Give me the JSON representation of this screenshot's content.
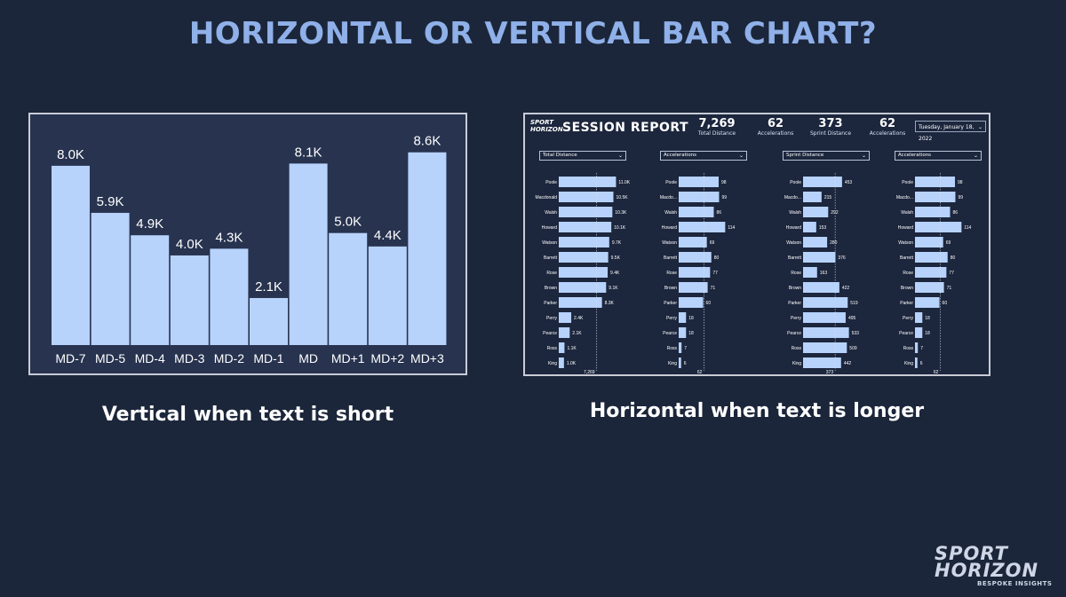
{
  "page": {
    "title": "HORIZONTAL OR VERTICAL BAR CHART?",
    "caption_left": "Vertical when text is short",
    "caption_right": "Horizontal when text is longer",
    "logo": {
      "line1": "SPORT",
      "line2": "HORIZON",
      "tagline": "BESPOKE INSIGHTS"
    }
  },
  "colors": {
    "background": "#1b263a",
    "title": "#8fb0e8",
    "bar": "#b7d2fb",
    "panel_left": "#27334f",
    "panel_right": "#1c263d"
  },
  "report": {
    "logo_line1": "SPORT",
    "logo_line2": "HORIZON",
    "title": "SESSION REPORT",
    "kpis": [
      {
        "value": "7,269",
        "label": "Total Distance"
      },
      {
        "value": "62",
        "label": "Accelerations"
      },
      {
        "value": "373",
        "label": "Sprint Distance"
      },
      {
        "value": "62",
        "label": "Accelerations"
      }
    ],
    "date": "Tuesday, January 18, 2022",
    "dropdowns": [
      "Total Distance",
      "Accelerations",
      "Sprint Distance",
      "Accelerations"
    ]
  },
  "chart_data": [
    {
      "type": "bar",
      "orientation": "vertical",
      "categories": [
        "MD-7",
        "MD-5",
        "MD-4",
        "MD-3",
        "MD-2",
        "MD-1",
        "MD",
        "MD+1",
        "MD+2",
        "MD+3"
      ],
      "values": [
        8.0,
        5.9,
        4.9,
        4.0,
        4.3,
        2.1,
        8.1,
        5.0,
        4.4,
        8.6
      ],
      "value_labels": [
        "8.0K",
        "5.9K",
        "4.9K",
        "4.0K",
        "4.3K",
        "2.1K",
        "8.1K",
        "5.0K",
        "4.4K",
        "8.6K"
      ],
      "unit": "K",
      "title": "",
      "xlabel": "",
      "ylabel": "",
      "ylim": [
        0,
        9.5
      ],
      "grid": false
    },
    {
      "type": "bar",
      "orientation": "horizontal",
      "categories": [
        "Poole",
        "Macdonald",
        "Walsh",
        "Howard",
        "Watson",
        "Barrett",
        "Rose",
        "Brown",
        "Parker",
        "Perry",
        "Pearce",
        "Ross",
        "King"
      ],
      "values": [
        11.0,
        10.5,
        10.3,
        10.1,
        9.7,
        9.5,
        9.4,
        9.1,
        8.3,
        2.4,
        2.1,
        1.1,
        1.0
      ],
      "value_labels": [
        "11.0K",
        "10.5K",
        "10.3K",
        "10.1K",
        "9.7K",
        "9.5K",
        "9.4K",
        "9.1K",
        "8.3K",
        "2.4K",
        "2.1K",
        "1.1K",
        "1.0K"
      ],
      "reference_line": 7.269,
      "reference_label": "7,269",
      "xlim": [
        0,
        14
      ]
    },
    {
      "type": "bar",
      "orientation": "horizontal",
      "categories": [
        "Poole",
        "Macdo...",
        "Walsh",
        "Howard",
        "Watson",
        "Barrett",
        "Rose",
        "Brown",
        "Parker",
        "Perry",
        "Pearce",
        "Ross",
        "King"
      ],
      "values": [
        98,
        99,
        86,
        114,
        69,
        80,
        77,
        71,
        60,
        18,
        18,
        7,
        6
      ],
      "value_labels": [
        "98",
        "99",
        "86",
        "114",
        "69",
        "80",
        "77",
        "71",
        "60",
        "18",
        "18",
        "7",
        "6"
      ],
      "reference_line": 62,
      "reference_label": "62",
      "xlim": [
        0,
        135
      ]
    },
    {
      "type": "bar",
      "orientation": "horizontal",
      "categories": [
        "Poole",
        "Macdo...",
        "Walsh",
        "Howard",
        "Watson",
        "Barrett",
        "Rose",
        "Brown",
        "Parker",
        "Perry",
        "Pearce",
        "Ross",
        "King"
      ],
      "values": [
        453,
        215,
        292,
        153,
        280,
        376,
        163,
        422,
        519,
        495,
        533,
        509,
        442
      ],
      "value_labels": [
        "453",
        "215",
        "292",
        "153",
        "280",
        "376",
        "163",
        "422",
        "519",
        "495",
        "533",
        "509",
        "442"
      ],
      "reference_line": 373,
      "reference_label": "373",
      "xlim": [
        0,
        640
      ]
    },
    {
      "type": "bar",
      "orientation": "horizontal",
      "categories": [
        "Poole",
        "Macdo...",
        "Walsh",
        "Howard",
        "Watson",
        "Barrett",
        "Rose",
        "Brown",
        "Parker",
        "Perry",
        "Pearce",
        "Ross",
        "King"
      ],
      "values": [
        98,
        99,
        86,
        114,
        69,
        80,
        77,
        71,
        60,
        18,
        18,
        7,
        6
      ],
      "value_labels": [
        "98",
        "99",
        "86",
        "114",
        "69",
        "80",
        "77",
        "71",
        "60",
        "18",
        "18",
        "7",
        "6"
      ],
      "reference_line": 62,
      "reference_label": "62",
      "xlim": [
        0,
        135
      ]
    }
  ]
}
